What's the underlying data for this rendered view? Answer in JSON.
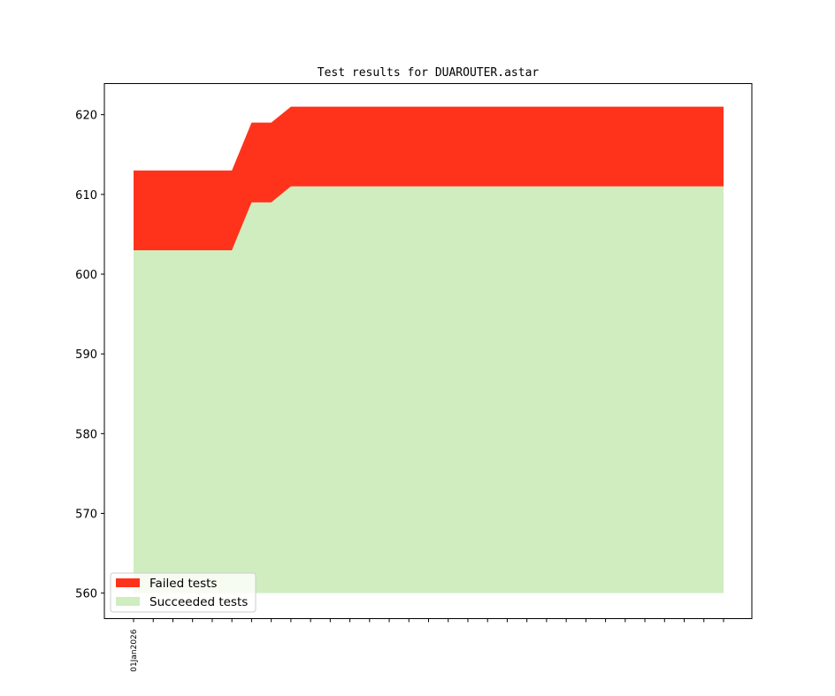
{
  "chart_data": {
    "type": "area",
    "title": "Test results for DUAROUTER.astar",
    "xlabel": "",
    "ylabel": "",
    "ylim": [
      556.8,
      623.9
    ],
    "yticks": [
      560,
      570,
      580,
      590,
      600,
      610,
      620
    ],
    "x_tick_count": 31,
    "x_tick_labels": [
      {
        "index": 0,
        "label": "01Jan2026"
      }
    ],
    "x": [
      0,
      5,
      6,
      7,
      8,
      30
    ],
    "series": [
      {
        "name": "Succeeded tests",
        "color": "#cfedbf",
        "baseline": 560,
        "values": [
          603,
          603,
          609,
          609,
          611,
          611
        ]
      },
      {
        "name": "Failed tests",
        "color": "#ff331c",
        "values": [
          10,
          10,
          10,
          10,
          10,
          10
        ]
      }
    ],
    "legend": {
      "position": "lower-left",
      "entries": [
        {
          "label": "Failed tests",
          "color": "#ff331c"
        },
        {
          "label": "Succeeded tests",
          "color": "#cfedbf"
        }
      ]
    },
    "grid": false
  }
}
